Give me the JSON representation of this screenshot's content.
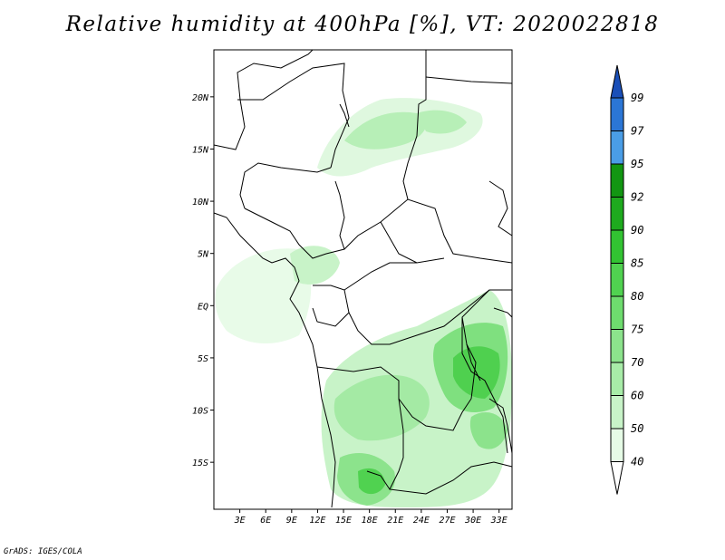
{
  "title": "Relative humidity at 400hPa [%], VT: 2020022818",
  "credit": "GrADS: IGES/COLA",
  "map": {
    "lon_ticks": [
      "3E",
      "6E",
      "9E",
      "12E",
      "15E",
      "18E",
      "21E",
      "24E",
      "27E",
      "30E",
      "33E"
    ],
    "lat_ticks": [
      "20N",
      "15N",
      "10N",
      "5N",
      "EQ",
      "5S",
      "10S",
      "15S"
    ],
    "lon_range": [
      0,
      34.5
    ],
    "lat_range": [
      -19.5,
      24.5
    ],
    "colors": {
      "land_outline": "#000000",
      "background": "#ffffff"
    }
  },
  "colorbar": {
    "levels": [
      "40",
      "50",
      "60",
      "70",
      "75",
      "80",
      "85",
      "90",
      "92",
      "95",
      "97",
      "99"
    ],
    "colors": [
      "#ffffff",
      "#e6fbe6",
      "#c8f3c8",
      "#a8eca8",
      "#8ce38c",
      "#6edc6e",
      "#50d250",
      "#32c332",
      "#1eaa1e",
      "#129612",
      "#4a9de6",
      "#2b76d6",
      "#1a4fb8"
    ]
  }
}
